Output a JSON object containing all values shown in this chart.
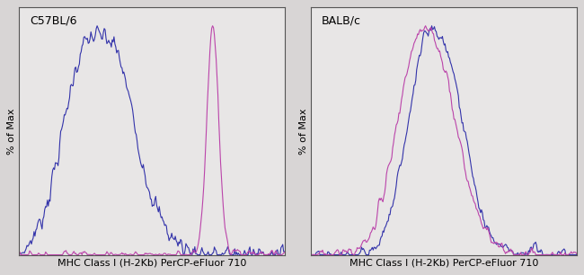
{
  "panel1_label": "C57BL/6",
  "panel2_label": "BALB/c",
  "xlabel": "MHC Class I (H-2Kb) PerCP-eFluor 710",
  "ylabel": "% of Max",
  "blue_color": "#3333aa",
  "pink_color": "#bb44aa",
  "bg_color": "#e8e6e6",
  "fig_bg": "#d8d5d5",
  "spine_color": "#555555",
  "title_fontsize": 9,
  "label_fontsize": 8,
  "xlabel_fontsize": 8
}
